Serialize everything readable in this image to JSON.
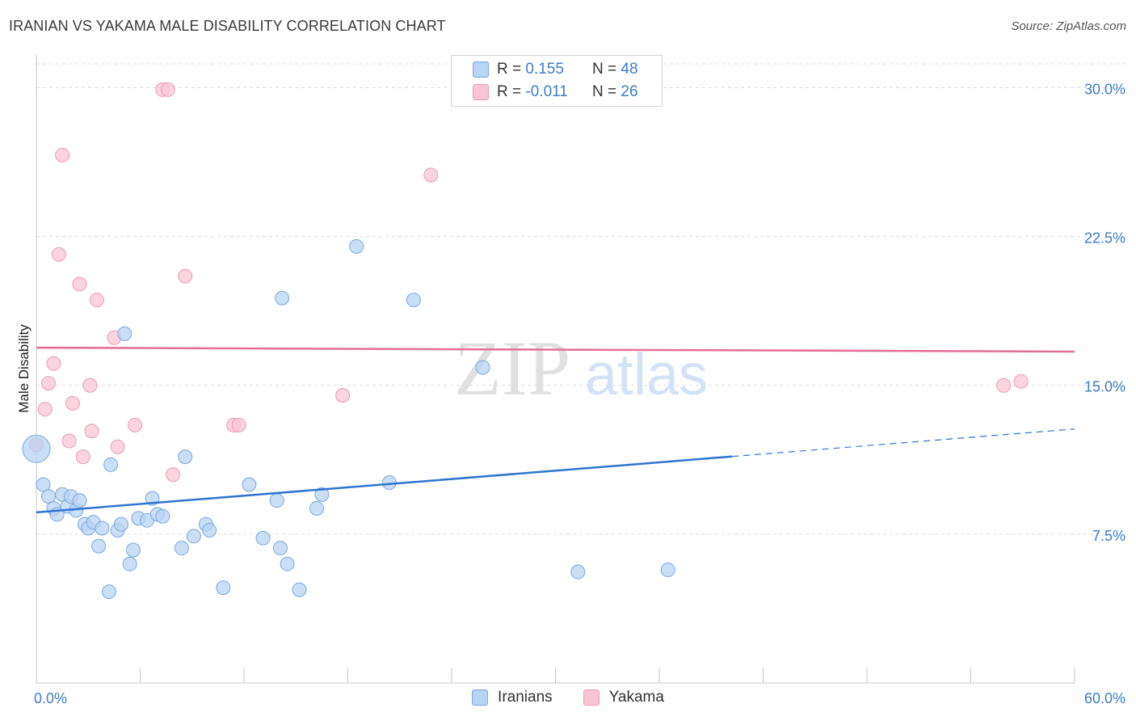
{
  "title": "IRANIAN VS YAKAMA MALE DISABILITY CORRELATION CHART",
  "source": "Source: ZipAtlas.com",
  "watermark": {
    "zip": "ZIP",
    "atlas": "atlas"
  },
  "legend": {
    "rows": [
      {
        "r_label": "R =",
        "r_value": "0.155",
        "n_label": "N =",
        "n_value": "48"
      },
      {
        "r_label": "R =",
        "r_value": "-0.011",
        "n_label": "N =",
        "n_value": "26"
      }
    ]
  },
  "bottom_legend": {
    "iranians": "Iranians",
    "yakama": "Yakama"
  },
  "colors": {
    "iranians_fill": "#b8d3f3",
    "iranians_stroke": "#7aaae0",
    "iranians_line": "#2f74d0",
    "yakama_fill": "#f9c5d5",
    "yakama_stroke": "#ee9ab4",
    "yakama_line": "#e46d93",
    "tick_text": "#3d7cc9"
  },
  "chart_data": {
    "type": "scatter",
    "title": "IRANIAN VS YAKAMA MALE DISABILITY CORRELATION CHART",
    "xlabel": "",
    "ylabel": "Male Disability",
    "xlim": [
      0,
      60
    ],
    "ylim": [
      0,
      31.2
    ],
    "x_tick_labels": [
      "0.0%",
      "60.0%"
    ],
    "y_ticks": [
      7.5,
      15.0,
      22.5,
      30.0
    ],
    "y_tick_labels": [
      "7.5%",
      "15.0%",
      "22.5%",
      "30.0%"
    ],
    "series": [
      {
        "name": "Iranians",
        "r": 0.155,
        "n": 48,
        "trend": {
          "x0": 0,
          "y0": 8.6,
          "x1": 60,
          "y1": 12.8,
          "solid_until_x": 40.2
        },
        "points": [
          {
            "x": 0.0,
            "y": 11.8,
            "big": true
          },
          {
            "x": 0.4,
            "y": 10.0
          },
          {
            "x": 0.7,
            "y": 9.4
          },
          {
            "x": 1.0,
            "y": 8.8
          },
          {
            "x": 1.2,
            "y": 8.5
          },
          {
            "x": 1.5,
            "y": 9.5
          },
          {
            "x": 1.8,
            "y": 8.9
          },
          {
            "x": 2.0,
            "y": 9.4
          },
          {
            "x": 2.3,
            "y": 8.7
          },
          {
            "x": 2.5,
            "y": 9.2
          },
          {
            "x": 2.8,
            "y": 8.0
          },
          {
            "x": 3.0,
            "y": 7.8
          },
          {
            "x": 3.3,
            "y": 8.1
          },
          {
            "x": 3.6,
            "y": 6.9
          },
          {
            "x": 3.8,
            "y": 7.8
          },
          {
            "x": 4.2,
            "y": 4.6
          },
          {
            "x": 4.3,
            "y": 11.0
          },
          {
            "x": 4.7,
            "y": 7.7
          },
          {
            "x": 4.9,
            "y": 8.0
          },
          {
            "x": 5.1,
            "y": 17.6
          },
          {
            "x": 5.4,
            "y": 6.0
          },
          {
            "x": 5.6,
            "y": 6.7
          },
          {
            "x": 5.9,
            "y": 8.3
          },
          {
            "x": 6.4,
            "y": 8.2
          },
          {
            "x": 6.7,
            "y": 9.3
          },
          {
            "x": 7.0,
            "y": 8.5
          },
          {
            "x": 7.3,
            "y": 8.4
          },
          {
            "x": 8.4,
            "y": 6.8
          },
          {
            "x": 8.6,
            "y": 11.4
          },
          {
            "x": 9.1,
            "y": 7.4
          },
          {
            "x": 9.8,
            "y": 8.0
          },
          {
            "x": 10.0,
            "y": 7.7
          },
          {
            "x": 10.8,
            "y": 4.8
          },
          {
            "x": 12.3,
            "y": 10.0
          },
          {
            "x": 13.1,
            "y": 7.3
          },
          {
            "x": 13.9,
            "y": 9.2
          },
          {
            "x": 14.1,
            "y": 6.8
          },
          {
            "x": 14.2,
            "y": 19.4
          },
          {
            "x": 14.5,
            "y": 6.0
          },
          {
            "x": 15.2,
            "y": 4.7
          },
          {
            "x": 16.2,
            "y": 8.8
          },
          {
            "x": 16.5,
            "y": 9.5
          },
          {
            "x": 18.5,
            "y": 22.0
          },
          {
            "x": 20.4,
            "y": 10.1
          },
          {
            "x": 21.8,
            "y": 19.3
          },
          {
            "x": 25.8,
            "y": 15.9
          },
          {
            "x": 31.3,
            "y": 5.6
          },
          {
            "x": 36.5,
            "y": 5.7
          }
        ]
      },
      {
        "name": "Yakama",
        "r": -0.011,
        "n": 26,
        "trend": {
          "x0": 0,
          "y0": 16.9,
          "x1": 60,
          "y1": 16.7,
          "solid_until_x": 60
        },
        "points": [
          {
            "x": 0.0,
            "y": 12.0
          },
          {
            "x": 0.5,
            "y": 13.8
          },
          {
            "x": 0.7,
            "y": 15.1
          },
          {
            "x": 1.0,
            "y": 16.1
          },
          {
            "x": 1.3,
            "y": 21.6
          },
          {
            "x": 1.5,
            "y": 26.6
          },
          {
            "x": 1.9,
            "y": 12.2
          },
          {
            "x": 2.1,
            "y": 14.1
          },
          {
            "x": 2.5,
            "y": 20.1
          },
          {
            "x": 2.7,
            "y": 11.4
          },
          {
            "x": 3.1,
            "y": 15.0
          },
          {
            "x": 3.2,
            "y": 12.7
          },
          {
            "x": 3.5,
            "y": 19.3
          },
          {
            "x": 4.5,
            "y": 17.4
          },
          {
            "x": 4.7,
            "y": 11.9
          },
          {
            "x": 5.7,
            "y": 13.0
          },
          {
            "x": 7.3,
            "y": 29.9
          },
          {
            "x": 7.6,
            "y": 29.9
          },
          {
            "x": 7.9,
            "y": 10.5
          },
          {
            "x": 8.6,
            "y": 20.5
          },
          {
            "x": 11.4,
            "y": 13.0
          },
          {
            "x": 11.7,
            "y": 13.0
          },
          {
            "x": 17.7,
            "y": 14.5
          },
          {
            "x": 22.8,
            "y": 25.6
          },
          {
            "x": 55.9,
            "y": 15.0
          },
          {
            "x": 56.9,
            "y": 15.2
          }
        ]
      }
    ]
  }
}
